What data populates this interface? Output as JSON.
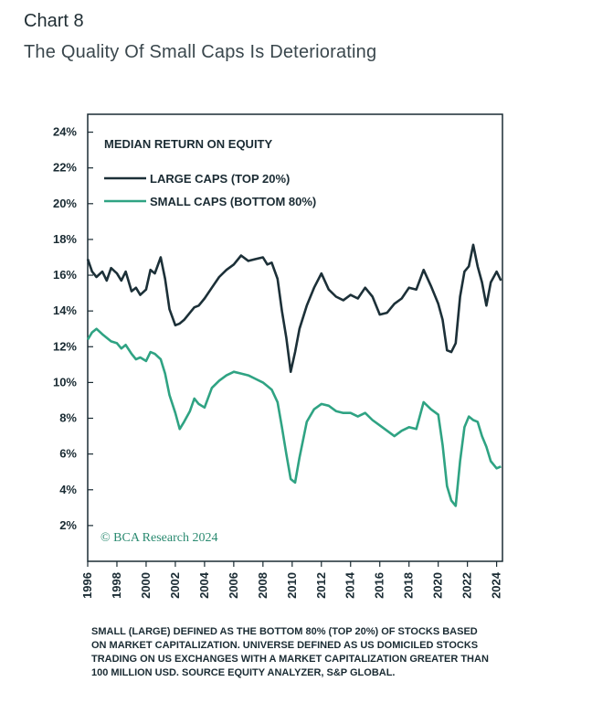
{
  "header": {
    "chart_label": "Chart 8",
    "title": "The Quality Of Small Caps Is Deteriorating"
  },
  "footnote": {
    "lines": [
      "SMALL (LARGE) DEFINED AS THE BOTTOM 80% (TOP 20%) OF STOCKS BASED",
      "ON MARKET CAPITALIZATION. UNIVERSE DEFINED AS US DOMICILED STOCKS",
      "TRADING ON US EXCHANGES WITH A MARKET CAPITALIZATION GREATER THAN",
      "100 MILLION USD. SOURCE EQUITY ANALYZER, S&P GLOBAL."
    ]
  },
  "watermark": "© BCA Research 2024",
  "colors": {
    "large_caps": "#1c3038",
    "small_caps": "#2fa383",
    "axis": "#1a2b33"
  },
  "chart_data": {
    "type": "line",
    "title": "MEDIAN RETURN ON EQUITY",
    "xlabel": "",
    "ylabel": "",
    "xlim": [
      1996,
      2024.4
    ],
    "ylim": [
      0,
      25
    ],
    "y_ticks": [
      "2%",
      "4%",
      "6%",
      "8%",
      "10%",
      "12%",
      "14%",
      "16%",
      "18%",
      "20%",
      "22%",
      "24%"
    ],
    "y_tick_values": [
      2,
      4,
      6,
      8,
      10,
      12,
      14,
      16,
      18,
      20,
      22,
      24
    ],
    "x_ticks": [
      "1996",
      "1998",
      "2000",
      "2002",
      "2004",
      "2006",
      "2008",
      "2010",
      "2012",
      "2014",
      "2016",
      "2018",
      "2020",
      "2022",
      "2024"
    ],
    "x_tick_values": [
      1996,
      1998,
      2000,
      2002,
      2004,
      2006,
      2008,
      2010,
      2012,
      2014,
      2016,
      2018,
      2020,
      2022,
      2024
    ],
    "legend_position": "top-left",
    "grid": false,
    "series": [
      {
        "name": "LARGE CAPS (TOP 20%)",
        "x": [
          1996,
          1996.3,
          1996.6,
          1997,
          1997.3,
          1997.6,
          1998,
          1998.3,
          1998.6,
          1999,
          1999.3,
          1999.6,
          2000,
          2000.3,
          2000.6,
          2001,
          2001.3,
          2001.6,
          2002,
          2002.3,
          2002.6,
          2003,
          2003.3,
          2003.6,
          2004,
          2004.5,
          2005,
          2005.5,
          2006,
          2006.5,
          2007,
          2007.5,
          2008,
          2008.3,
          2008.6,
          2009,
          2009.3,
          2009.6,
          2009.9,
          2010.2,
          2010.5,
          2011,
          2011.5,
          2012,
          2012.5,
          2013,
          2013.5,
          2014,
          2014.5,
          2015,
          2015.5,
          2016,
          2016.5,
          2017,
          2017.5,
          2018,
          2018.5,
          2019,
          2019.5,
          2020,
          2020.3,
          2020.6,
          2020.9,
          2021.2,
          2021.5,
          2021.8,
          2022.1,
          2022.4,
          2022.7,
          2023,
          2023.3,
          2023.6,
          2024,
          2024.3
        ],
        "values": [
          16.9,
          16.2,
          15.9,
          16.2,
          15.7,
          16.4,
          16.1,
          15.7,
          16.2,
          15.1,
          15.3,
          14.9,
          15.2,
          16.3,
          16.1,
          17.0,
          15.8,
          14.1,
          13.2,
          13.3,
          13.5,
          13.9,
          14.2,
          14.3,
          14.7,
          15.3,
          15.9,
          16.3,
          16.6,
          17.1,
          16.8,
          16.9,
          17.0,
          16.6,
          16.7,
          15.8,
          14.0,
          12.5,
          10.6,
          11.7,
          13.0,
          14.3,
          15.3,
          16.1,
          15.2,
          14.8,
          14.6,
          14.9,
          14.7,
          15.3,
          14.8,
          13.8,
          13.9,
          14.4,
          14.7,
          15.3,
          15.2,
          16.3,
          15.4,
          14.4,
          13.5,
          11.8,
          11.7,
          12.2,
          14.8,
          16.2,
          16.5,
          17.7,
          16.5,
          15.6,
          14.3,
          15.6,
          16.2,
          15.7
        ]
      },
      {
        "name": "SMALL CAPS (BOTTOM 80%)",
        "x": [
          1996,
          1996.3,
          1996.6,
          1997,
          1997.3,
          1997.6,
          1998,
          1998.3,
          1998.6,
          1999,
          1999.3,
          1999.6,
          2000,
          2000.3,
          2000.6,
          2001,
          2001.3,
          2001.6,
          2002,
          2002.3,
          2002.6,
          2003,
          2003.3,
          2003.6,
          2004,
          2004.5,
          2005,
          2005.5,
          2006,
          2006.5,
          2007,
          2007.5,
          2008,
          2008.3,
          2008.6,
          2009,
          2009.3,
          2009.6,
          2009.9,
          2010.2,
          2010.5,
          2011,
          2011.5,
          2012,
          2012.5,
          2013,
          2013.5,
          2014,
          2014.5,
          2015,
          2015.5,
          2016,
          2016.5,
          2017,
          2017.5,
          2018,
          2018.5,
          2019,
          2019.5,
          2020,
          2020.3,
          2020.6,
          2020.9,
          2021.2,
          2021.5,
          2021.8,
          2022.1,
          2022.4,
          2022.7,
          2023,
          2023.3,
          2023.6,
          2024,
          2024.3
        ],
        "values": [
          12.4,
          12.8,
          13.0,
          12.7,
          12.5,
          12.3,
          12.2,
          11.9,
          12.1,
          11.6,
          11.3,
          11.4,
          11.2,
          11.7,
          11.6,
          11.3,
          10.5,
          9.3,
          8.3,
          7.4,
          7.8,
          8.4,
          9.1,
          8.8,
          8.6,
          9.7,
          10.1,
          10.4,
          10.6,
          10.5,
          10.4,
          10.2,
          10.0,
          9.8,
          9.6,
          8.9,
          7.5,
          6.0,
          4.6,
          4.4,
          5.8,
          7.8,
          8.5,
          8.8,
          8.7,
          8.4,
          8.3,
          8.3,
          8.1,
          8.3,
          7.9,
          7.6,
          7.3,
          7.0,
          7.3,
          7.5,
          7.4,
          8.9,
          8.5,
          8.2,
          6.5,
          4.2,
          3.4,
          3.1,
          5.6,
          7.5,
          8.1,
          7.9,
          7.8,
          7.0,
          6.4,
          5.6,
          5.2,
          5.3
        ]
      }
    ]
  }
}
